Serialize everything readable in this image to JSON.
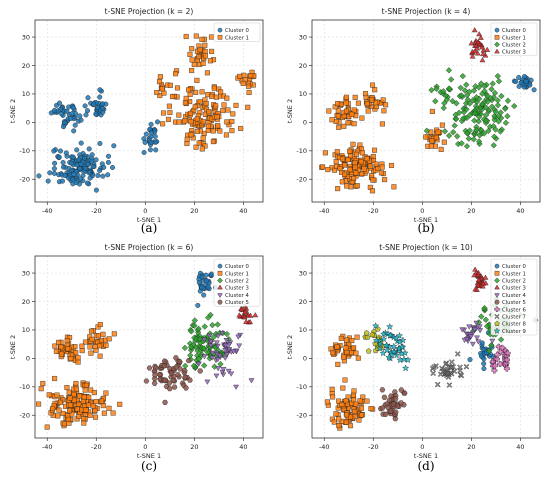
{
  "colors": {
    "cluster_0": "#1f77b4",
    "cluster_1": "#ff7f0e",
    "cluster_2": "#2ca02c",
    "cluster_3": "#d62728",
    "cluster_4": "#9467bd",
    "cluster_5": "#8c564b",
    "cluster_6": "#e377c2",
    "cluster_7": "#7f7f7f",
    "cluster_8": "#bcbd22",
    "cluster_9": "#17becf"
  },
  "marker_shapes": [
    "circle",
    "square",
    "diamond",
    "triangle-up",
    "triangle-down",
    "hexagon",
    "plus",
    "x",
    "pentagon",
    "star"
  ],
  "chart_data": [
    {
      "type": "scatter",
      "title": "t-SNE Projection (k = 2)",
      "xlabel": "t-SNE 1",
      "ylabel": "t-SNE 2",
      "caption": "(a)",
      "xlim": [
        -45,
        48
      ],
      "ylim": [
        -28,
        36
      ],
      "xticks": [
        -40,
        -20,
        0,
        20,
        40
      ],
      "yticks": [
        -20,
        -10,
        0,
        10,
        20,
        30
      ],
      "grid": true,
      "legend_position": "top-right",
      "legend": [
        "Cluster 0",
        "Cluster 1"
      ],
      "series": [
        {
          "name": "Cluster 0",
          "color_key": "cluster_0",
          "marker": "circle",
          "blobs": [
            [
              -32,
              3,
              3.5,
              3,
              40
            ],
            [
              -20,
              6,
              3,
              3,
              30
            ],
            [
              -28,
              -16,
              7,
              4,
              130
            ],
            [
              3,
              -5,
              2.5,
              3,
              25
            ]
          ]
        },
        {
          "name": "Cluster 1",
          "color_key": "cluster_1",
          "marker": "square",
          "blobs": [
            [
              22,
              24,
              3.5,
              4,
              30
            ],
            [
              42,
              15,
              2,
              2,
              15
            ],
            [
              24,
              3,
              9,
              7,
              130
            ],
            [
              8,
              13,
              4,
              3,
              15
            ]
          ]
        }
      ]
    },
    {
      "type": "scatter",
      "title": "t-SNE Projection (k = 4)",
      "xlabel": "t-SNE 1",
      "ylabel": "t-SNE 2",
      "caption": "(b)",
      "xlim": [
        -45,
        48
      ],
      "ylim": [
        -28,
        36
      ],
      "xticks": [
        -40,
        -20,
        0,
        20,
        40
      ],
      "yticks": [
        -20,
        -10,
        0,
        10,
        20,
        30
      ],
      "grid": true,
      "legend_position": "top-right",
      "legend": [
        "Cluster 0",
        "Cluster 1",
        "Cluster 2",
        "Cluster 3"
      ],
      "series": [
        {
          "name": "Cluster 0",
          "color_key": "cluster_0",
          "marker": "circle",
          "blobs": [
            [
              41,
              14,
              2.5,
              2,
              25
            ]
          ]
        },
        {
          "name": "Cluster 1",
          "color_key": "cluster_1",
          "marker": "square",
          "blobs": [
            [
              -32,
              3,
              3.5,
              3,
              40
            ],
            [
              -20,
              6,
              3,
              3,
              30
            ],
            [
              -28,
              -16,
              7,
              4,
              130
            ],
            [
              5,
              -5,
              2.5,
              3,
              25
            ]
          ]
        },
        {
          "name": "Cluster 2",
          "color_key": "cluster_2",
          "marker": "diamond",
          "blobs": [
            [
              23,
              4,
              8,
              7,
              140
            ],
            [
              8,
              12,
              3,
              3,
              15
            ]
          ]
        },
        {
          "name": "Cluster 3",
          "color_key": "cluster_3",
          "marker": "triangle-up",
          "blobs": [
            [
              23,
              26,
              2.5,
              3.5,
              25
            ]
          ]
        }
      ]
    },
    {
      "type": "scatter",
      "title": "t-SNE Projection (k = 6)",
      "xlabel": "t-SNE 1",
      "ylabel": "t-SNE 2",
      "caption": "(c)",
      "xlim": [
        -45,
        48
      ],
      "ylim": [
        -28,
        36
      ],
      "xticks": [
        -40,
        -20,
        0,
        20,
        40
      ],
      "yticks": [
        -20,
        -10,
        0,
        10,
        20,
        30
      ],
      "grid": true,
      "legend_position": "top-right",
      "legend": [
        "Cluster 0",
        "Cluster 1",
        "Cluster 2",
        "Cluster 3",
        "Cluster 4",
        "Cluster 5"
      ],
      "series": [
        {
          "name": "Cluster 0",
          "color_key": "cluster_0",
          "marker": "circle",
          "blobs": [
            [
              25,
              27,
              3,
              3,
              30
            ]
          ]
        },
        {
          "name": "Cluster 1",
          "color_key": "cluster_1",
          "marker": "square",
          "blobs": [
            [
              -32,
              3,
              3.5,
              3,
              40
            ],
            [
              -20,
              6,
              3,
              3,
              30
            ],
            [
              -28,
              -16,
              7,
              4,
              140
            ]
          ]
        },
        {
          "name": "Cluster 2",
          "color_key": "cluster_2",
          "marker": "diamond",
          "blobs": [
            [
              24,
              5,
              5,
              5,
              90
            ]
          ]
        },
        {
          "name": "Cluster 3",
          "color_key": "cluster_3",
          "marker": "triangle-up",
          "blobs": [
            [
              41,
              15,
              2,
              2,
              20
            ]
          ]
        },
        {
          "name": "Cluster 4",
          "color_key": "cluster_4",
          "marker": "triangle-down",
          "blobs": [
            [
              32,
              2,
              5,
              6,
              50
            ]
          ]
        },
        {
          "name": "Cluster 5",
          "color_key": "cluster_5",
          "marker": "hexagon",
          "blobs": [
            [
              10,
              -5,
              5,
              4,
              60
            ]
          ]
        }
      ]
    },
    {
      "type": "scatter",
      "title": "t-SNE Projection (k = 10)",
      "xlabel": "t-SNE 1",
      "ylabel": "t-SNE 2",
      "caption": "(d)",
      "xlim": [
        -45,
        48
      ],
      "ylim": [
        -28,
        36
      ],
      "xticks": [
        -40,
        -20,
        0,
        20,
        40
      ],
      "yticks": [
        -20,
        -10,
        0,
        10,
        20,
        30
      ],
      "grid": true,
      "legend_position": "top-right",
      "legend": [
        "Cluster 0",
        "Cluster 1",
        "Cluster 2",
        "Cluster 3",
        "Cluster 4",
        "Cluster 5",
        "Cluster 6",
        "Cluster 7",
        "Cluster 8",
        "Cluster 9"
      ],
      "series": [
        {
          "name": "Cluster 0",
          "color_key": "cluster_0",
          "marker": "circle",
          "blobs": [
            [
              26,
              2,
              3,
              3,
              25
            ]
          ]
        },
        {
          "name": "Cluster 1",
          "color_key": "cluster_1",
          "marker": "square",
          "blobs": [
            [
              -32,
              3,
              3.5,
              3,
              40
            ],
            [
              -30,
              -17,
              5,
              4,
              80
            ]
          ]
        },
        {
          "name": "Cluster 2",
          "color_key": "cluster_2",
          "marker": "diamond",
          "blobs": [
            [
              30,
              12,
              6,
              5,
              45
            ]
          ]
        },
        {
          "name": "Cluster 3",
          "color_key": "cluster_3",
          "marker": "triangle-up",
          "blobs": [
            [
              23,
              27,
              2.5,
              3,
              25
            ]
          ]
        },
        {
          "name": "Cluster 4",
          "color_key": "cluster_4",
          "marker": "triangle-down",
          "blobs": [
            [
              20,
              9,
              3,
              3,
              25
            ]
          ]
        },
        {
          "name": "Cluster 5",
          "color_key": "cluster_5",
          "marker": "hexagon",
          "blobs": [
            [
              -12,
              -16,
              3.5,
              3,
              40
            ]
          ]
        },
        {
          "name": "Cluster 6",
          "color_key": "cluster_6",
          "marker": "plus",
          "blobs": [
            [
              33,
              -1,
              3,
              3,
              25
            ]
          ]
        },
        {
          "name": "Cluster 7",
          "color_key": "cluster_7",
          "marker": "x",
          "blobs": [
            [
              10,
              -4,
              4,
              3,
              35
            ]
          ]
        },
        {
          "name": "Cluster 8",
          "color_key": "cluster_8",
          "marker": "pentagon",
          "blobs": [
            [
              -20,
              6,
              3,
              3,
              20
            ]
          ]
        },
        {
          "name": "Cluster 9",
          "color_key": "cluster_9",
          "marker": "star",
          "blobs": [
            [
              -12,
              4,
              4,
              4,
              45
            ]
          ]
        }
      ]
    }
  ]
}
